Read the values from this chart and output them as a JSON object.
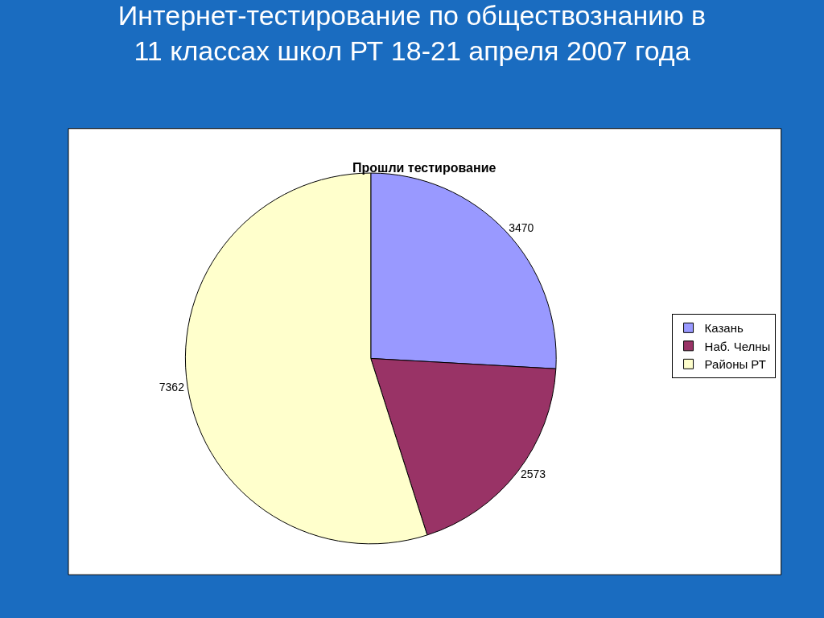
{
  "chart_data": {
    "type": "pie",
    "title": "Интернет-тестирование по обществознанию в 11 классах школ РТ 18-21 апреля 2007 года",
    "subtitle": "Прошли тестирование",
    "categories": [
      "Казань",
      "Наб. Челны",
      "Районы РТ"
    ],
    "values": [
      3470,
      2573,
      7362
    ],
    "colors": [
      "#9999ff",
      "#993366",
      "#ffffcc"
    ],
    "data_labels": true,
    "legend": "right"
  }
}
